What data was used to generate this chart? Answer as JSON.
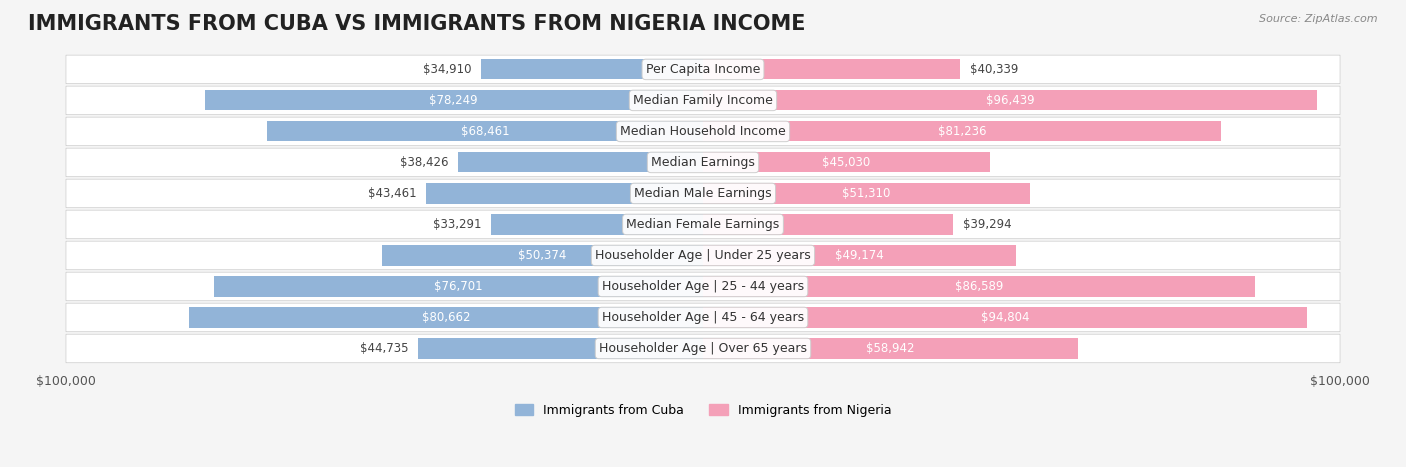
{
  "title": "IMMIGRANTS FROM CUBA VS IMMIGRANTS FROM NIGERIA INCOME",
  "source": "Source: ZipAtlas.com",
  "categories": [
    "Per Capita Income",
    "Median Family Income",
    "Median Household Income",
    "Median Earnings",
    "Median Male Earnings",
    "Median Female Earnings",
    "Householder Age | Under 25 years",
    "Householder Age | 25 - 44 years",
    "Householder Age | 45 - 64 years",
    "Householder Age | Over 65 years"
  ],
  "cuba_values": [
    34910,
    78249,
    68461,
    38426,
    43461,
    33291,
    50374,
    76701,
    80662,
    44735
  ],
  "nigeria_values": [
    40339,
    96439,
    81236,
    45030,
    51310,
    39294,
    49174,
    86589,
    94804,
    58942
  ],
  "cuba_color": "#92b4d8",
  "nigeria_color": "#f4a0b8",
  "cuba_label": "Immigrants from Cuba",
  "nigeria_label": "Immigrants from Nigeria",
  "xlim": 100000,
  "bg_color": "#f5f5f5",
  "bar_bg_color": "#ffffff",
  "title_fontsize": 15,
  "label_fontsize": 9,
  "value_fontsize": 8.5,
  "axis_label_fontsize": 9,
  "bar_height": 0.65
}
